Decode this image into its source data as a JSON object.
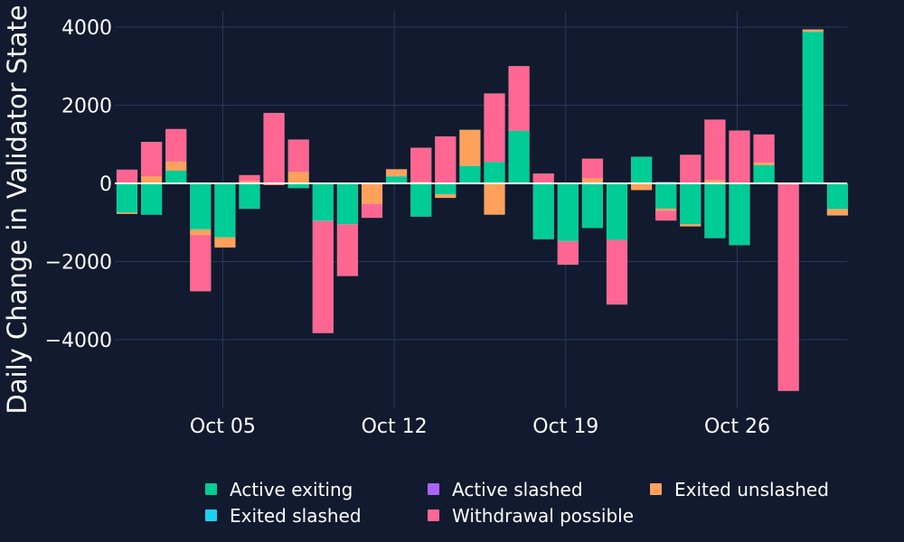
{
  "chart_data": {
    "type": "bar",
    "barmode": "relative",
    "ylabel": "Daily Change in Validator State",
    "ylim": [
      -5700,
      4400
    ],
    "y_ticks": [
      {
        "value": 4000,
        "label": "4000"
      },
      {
        "value": 2000,
        "label": "2000"
      },
      {
        "value": 0,
        "label": "0"
      },
      {
        "value": -2000,
        "label": "−2000"
      },
      {
        "value": -4000,
        "label": "−4000"
      }
    ],
    "x_ticks": [
      {
        "index": 4,
        "label": "Oct 05"
      },
      {
        "index": 11,
        "label": "Oct 12"
      },
      {
        "index": 18,
        "label": "Oct 19"
      },
      {
        "index": 25,
        "label": "Oct 26"
      }
    ],
    "categories": [
      "Oct 01",
      "Oct 02",
      "Oct 03",
      "Oct 04",
      "Oct 05",
      "Oct 06",
      "Oct 07",
      "Oct 08",
      "Oct 09",
      "Oct 10",
      "Oct 11",
      "Oct 12",
      "Oct 13",
      "Oct 14",
      "Oct 15",
      "Oct 16",
      "Oct 17",
      "Oct 18",
      "Oct 19",
      "Oct 20",
      "Oct 21",
      "Oct 22",
      "Oct 23",
      "Oct 24",
      "Oct 25",
      "Oct 26",
      "Oct 27",
      "Oct 28",
      "Oct 29",
      "Oct 30",
      "Oct 31"
    ],
    "series": [
      {
        "name": "Active exiting",
        "color": "#00cc96",
        "values": [
          -750,
          -800,
          330,
          -1180,
          -1380,
          -650,
          0,
          -120,
          -960,
          -1050,
          0,
          180,
          -850,
          -280,
          450,
          550,
          1350,
          -1430,
          -1480,
          -1140,
          -1450,
          680,
          -650,
          -1050,
          -1400,
          -1580,
          470,
          0,
          3880,
          -660,
          0
        ]
      },
      {
        "name": "Active slashed",
        "color": "#ab63fa",
        "values": [
          0,
          0,
          0,
          0,
          0,
          0,
          0,
          0,
          0,
          0,
          0,
          0,
          0,
          0,
          0,
          0,
          0,
          0,
          0,
          0,
          0,
          0,
          0,
          0,
          0,
          0,
          0,
          0,
          0,
          0,
          0
        ]
      },
      {
        "name": "Exited unslashed",
        "color": "#ffa15a",
        "values": [
          -30,
          180,
          230,
          -140,
          -260,
          60,
          -40,
          290,
          0,
          0,
          -520,
          180,
          40,
          -90,
          920,
          -800,
          0,
          0,
          0,
          130,
          0,
          -170,
          -50,
          -50,
          80,
          0,
          60,
          -30,
          60,
          -160,
          0
        ]
      },
      {
        "name": "Exited slashed",
        "color": "#19d3f3",
        "values": [
          0,
          0,
          0,
          0,
          0,
          0,
          0,
          0,
          0,
          0,
          0,
          0,
          0,
          0,
          0,
          0,
          0,
          0,
          0,
          0,
          0,
          0,
          30,
          0,
          0,
          0,
          0,
          0,
          0,
          0,
          0
        ]
      },
      {
        "name": "Withdrawal possible",
        "color": "#ff6692",
        "values": [
          350,
          880,
          830,
          -1440,
          0,
          150,
          1800,
          830,
          -2870,
          -1320,
          -360,
          0,
          870,
          1200,
          0,
          1750,
          1650,
          250,
          -600,
          500,
          -1650,
          0,
          -250,
          730,
          1550,
          1350,
          720,
          -5280,
          0,
          0,
          0
        ]
      }
    ],
    "extra_neg_last": -560,
    "legend": {
      "placement": "bottom-center",
      "items": [
        {
          "name": "Active exiting",
          "color": "#00cc96"
        },
        {
          "name": "Active slashed",
          "color": "#ab63fa"
        },
        {
          "name": "Exited unslashed",
          "color": "#ffa15a"
        },
        {
          "name": "Exited slashed",
          "color": "#19d3f3"
        },
        {
          "name": "Withdrawal possible",
          "color": "#ff6692"
        }
      ]
    },
    "grid": true,
    "colors": {
      "background": "#111a2e",
      "grid": "#283a5c",
      "zero": "#ffffff",
      "text": "#ffffff"
    }
  }
}
